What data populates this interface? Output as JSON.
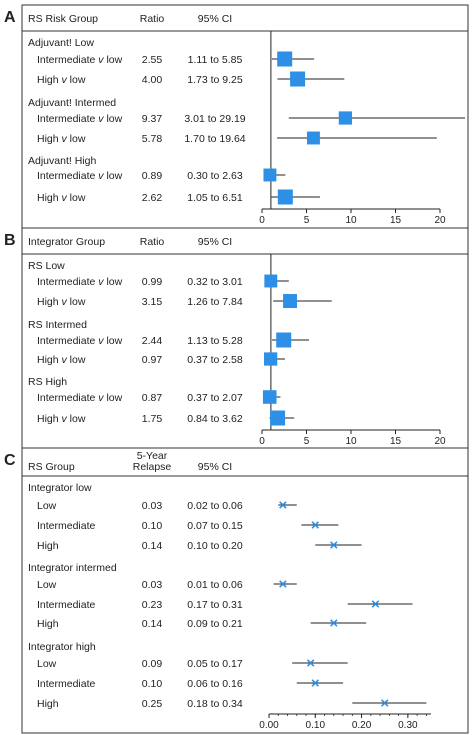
{
  "chart_data": [
    {
      "type": "scatter",
      "panel_label": "A",
      "headers": {
        "group": "RS Risk Group",
        "ratio": "Ratio",
        "ci": "95% CI"
      },
      "x_ticks": [
        "0",
        "5",
        "10",
        "15",
        "20"
      ],
      "xlim": [
        0,
        20
      ],
      "reference_line": 1,
      "marker_color": "#2e8fe6",
      "groups": [
        {
          "name": "Adjuvant! Low",
          "rows": [
            {
              "label": "Intermediate v low",
              "ratio": "2.55",
              "ci_text": "1.11 to 5.85",
              "value": 2.55,
              "low": 1.11,
              "high": 5.85,
              "weight": 1.0
            },
            {
              "label": "High v low",
              "ratio": "4.00",
              "ci_text": "1.73 to 9.25",
              "value": 4.0,
              "low": 1.73,
              "high": 9.25,
              "weight": 1.0
            }
          ]
        },
        {
          "name": "Adjuvant! Intermed",
          "rows": [
            {
              "label": "Intermediate v low",
              "ratio": "9.37",
              "ci_text": "3.01 to 29.19",
              "value": 9.37,
              "low": 3.01,
              "high": 29.19,
              "weight": 0.75
            },
            {
              "label": "High v low",
              "ratio": "5.78",
              "ci_text": "1.70 to 19.64",
              "value": 5.78,
              "low": 1.7,
              "high": 19.64,
              "weight": 0.7
            }
          ]
        },
        {
          "name": "Adjuvant! High",
          "rows": [
            {
              "label": "Intermediate v low",
              "ratio": "0.89",
              "ci_text": "0.30 to 2.63",
              "value": 0.89,
              "low": 0.3,
              "high": 2.63,
              "weight": 0.7
            },
            {
              "label": "High v low",
              "ratio": "2.62",
              "ci_text": "1.05 to 6.51",
              "value": 2.62,
              "low": 1.05,
              "high": 6.51,
              "weight": 1.0
            }
          ]
        }
      ]
    },
    {
      "type": "scatter",
      "panel_label": "B",
      "headers": {
        "group": "Integrator Group",
        "ratio": "Ratio",
        "ci": "95% CI"
      },
      "x_ticks": [
        "0",
        "5",
        "10",
        "15",
        "20"
      ],
      "xlim": [
        0,
        20
      ],
      "reference_line": 1,
      "marker_color": "#2e8fe6",
      "groups": [
        {
          "name": "RS Low",
          "rows": [
            {
              "label": "Intermediate v low",
              "ratio": "0.99",
              "ci_text": "0.32 to 3.01",
              "value": 0.99,
              "low": 0.32,
              "high": 3.01,
              "weight": 0.7
            },
            {
              "label": "High v low",
              "ratio": "3.15",
              "ci_text": "1.26 to 7.84",
              "value": 3.15,
              "low": 1.26,
              "high": 7.84,
              "weight": 0.85
            }
          ]
        },
        {
          "name": "RS Intermed",
          "rows": [
            {
              "label": "Intermediate v low",
              "ratio": "2.44",
              "ci_text": "1.13 to 5.28",
              "value": 2.44,
              "low": 1.13,
              "high": 5.28,
              "weight": 1.0
            },
            {
              "label": "High v low",
              "ratio": "0.97",
              "ci_text": "0.37 to 2.58",
              "value": 0.97,
              "low": 0.37,
              "high": 2.58,
              "weight": 0.75
            }
          ]
        },
        {
          "name": "RS High",
          "rows": [
            {
              "label": "Intermediate v low",
              "ratio": "0.87",
              "ci_text": "0.37 to 2.07",
              "value": 0.87,
              "low": 0.37,
              "high": 2.07,
              "weight": 0.8
            },
            {
              "label": "High v low",
              "ratio": "1.75",
              "ci_text": "0.84 to 3.62",
              "value": 1.75,
              "low": 0.84,
              "high": 3.62,
              "weight": 1.0
            }
          ]
        }
      ]
    },
    {
      "type": "scatter",
      "panel_label": "C",
      "headers": {
        "group": "RS Group",
        "ratio_line1": "5-Year",
        "ratio_line2": "Relapse",
        "ci": "95% CI"
      },
      "x_ticks": [
        "0.00",
        "0.10",
        "0.20",
        "0.30"
      ],
      "xlim": [
        0,
        0.35
      ],
      "marker_color": "#2e8fe6",
      "groups": [
        {
          "name": "Integrator low",
          "rows": [
            {
              "label": "Low",
              "ratio": "0.03",
              "ci_text": "0.02 to 0.06",
              "value": 0.03,
              "low": 0.02,
              "high": 0.06
            },
            {
              "label": "Intermediate",
              "ratio": "0.10",
              "ci_text": "0.07 to 0.15",
              "value": 0.1,
              "low": 0.07,
              "high": 0.15
            },
            {
              "label": "High",
              "ratio": "0.14",
              "ci_text": "0.10 to 0.20",
              "value": 0.14,
              "low": 0.1,
              "high": 0.2
            }
          ]
        },
        {
          "name": "Integrator intermed",
          "rows": [
            {
              "label": "Low",
              "ratio": "0.03",
              "ci_text": "0.01 to 0.06",
              "value": 0.03,
              "low": 0.01,
              "high": 0.06
            },
            {
              "label": "Intermediate",
              "ratio": "0.23",
              "ci_text": "0.17 to 0.31",
              "value": 0.23,
              "low": 0.17,
              "high": 0.31
            },
            {
              "label": "High",
              "ratio": "0.14",
              "ci_text": "0.09 to 0.21",
              "value": 0.14,
              "low": 0.09,
              "high": 0.21
            }
          ]
        },
        {
          "name": "Integrator high",
          "rows": [
            {
              "label": "Low",
              "ratio": "0.09",
              "ci_text": "0.05 to 0.17",
              "value": 0.09,
              "low": 0.05,
              "high": 0.17
            },
            {
              "label": "Intermediate",
              "ratio": "0.10",
              "ci_text": "0.06 to 0.16",
              "value": 0.1,
              "low": 0.06,
              "high": 0.16
            },
            {
              "label": "High",
              "ratio": "0.25",
              "ci_text": "0.18 to 0.34",
              "value": 0.25,
              "low": 0.18,
              "high": 0.34
            }
          ]
        }
      ]
    }
  ]
}
